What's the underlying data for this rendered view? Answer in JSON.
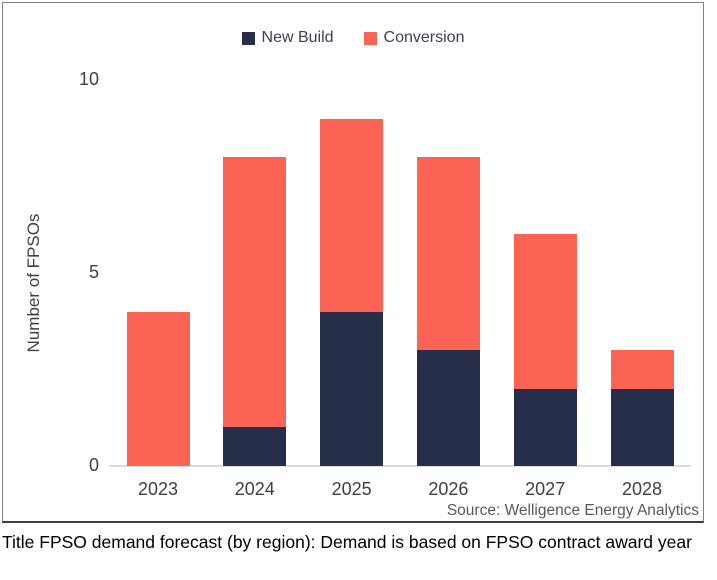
{
  "caption": "Title FPSO demand forecast (by region): Demand is based on FPSO contract award year",
  "colors": {
    "new_build": "#272E4A",
    "conversion": "#FB6455",
    "axis_text": "#3f3f3f",
    "legend_text": "#3a4158",
    "source_text": "#595959",
    "axis_line": "#dcdcdc"
  },
  "chart_data": {
    "type": "bar",
    "stacked": true,
    "title": "",
    "xlabel": "",
    "ylabel": "Number of FPSOs",
    "categories": [
      "2023",
      "2024",
      "2025",
      "2026",
      "2027",
      "2028"
    ],
    "series": [
      {
        "name": "New Build",
        "color": "#272E4A",
        "values": [
          0,
          1,
          4,
          3,
          2,
          2
        ]
      },
      {
        "name": "Conversion",
        "color": "#FB6455",
        "values": [
          4,
          7,
          5,
          5,
          4,
          1
        ]
      }
    ],
    "totals": [
      4,
      8,
      9,
      8,
      6,
      3
    ],
    "ylim": [
      0,
      10
    ],
    "yticks": [
      0,
      5,
      10
    ],
    "grid": false,
    "legend_position": "top-center",
    "source": "Source: Welligence Energy Analytics"
  }
}
